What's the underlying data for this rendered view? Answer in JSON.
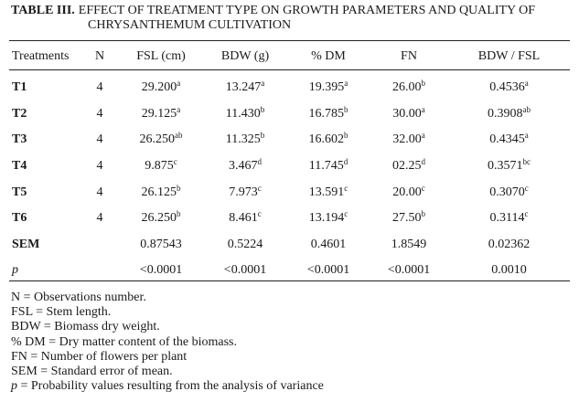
{
  "caption": {
    "label": "TABLE III.",
    "title_line1": "EFFECT OF TREATMENT TYPE ON GROWTH PARAMETERS AND QUALITY OF",
    "title_line2": "CHRYSANTHEMUM CULTIVATION"
  },
  "headers": [
    "Treatments",
    "N",
    "FSL (cm)",
    "BDW (g)",
    "% DM",
    "FN",
    "BDW / FSL"
  ],
  "rows": [
    {
      "label": "T1",
      "n": "4",
      "fsl": "29.200",
      "fsl_sup": "a",
      "bdw": "13.247",
      "bdw_sup": "a",
      "dm": "19.395",
      "dm_sup": "a",
      "fn": "26.00",
      "fn_sup": "b",
      "ratio": "0.4536",
      "ratio_sup": "a"
    },
    {
      "label": "T2",
      "n": "4",
      "fsl": "29.125",
      "fsl_sup": "a",
      "bdw": "11.430",
      "bdw_sup": "b",
      "dm": "16.785",
      "dm_sup": "b",
      "fn": "30.00",
      "fn_sup": "a",
      "ratio": "0.3908",
      "ratio_sup": "ab"
    },
    {
      "label": "T3",
      "n": "4",
      "fsl": "26.250",
      "fsl_sup": "ab",
      "bdw": "11.325",
      "bdw_sup": "b",
      "dm": "16.602",
      "dm_sup": "b",
      "fn": "32.00",
      "fn_sup": "a",
      "ratio": "0.4345",
      "ratio_sup": "a"
    },
    {
      "label": "T4",
      "n": "4",
      "fsl": "9.875",
      "fsl_sup": "c",
      "bdw": "3.467",
      "bdw_sup": "d",
      "dm": "11.745",
      "dm_sup": "d",
      "fn": "02.25",
      "fn_sup": "d",
      "ratio": "0.3571",
      "ratio_sup": "bc"
    },
    {
      "label": "T5",
      "n": "4",
      "fsl": "26.125",
      "fsl_sup": "b",
      "bdw": "7.973",
      "bdw_sup": "c",
      "dm": "13.591",
      "dm_sup": "c",
      "fn": "20.00",
      "fn_sup": "c",
      "ratio": "0.3070",
      "ratio_sup": "c"
    },
    {
      "label": "T6",
      "n": "4",
      "fsl": "26.250",
      "fsl_sup": "b",
      "bdw": "8.461",
      "bdw_sup": "c",
      "dm": "13.194",
      "dm_sup": "c",
      "fn": "27.50",
      "fn_sup": "b",
      "ratio": "0.3114",
      "ratio_sup": "c"
    }
  ],
  "sem": {
    "label": "SEM",
    "fsl": "0.87543",
    "bdw": "0.5224",
    "dm": "0.4601",
    "fn": "1.8549",
    "ratio": "0.02362"
  },
  "p": {
    "label": "p",
    "fsl": "<0.0001",
    "bdw": "<0.0001",
    "dm": "<0.0001",
    "fn": "<0.0001",
    "ratio": "0.0010"
  },
  "notes": [
    "N = Observations number.",
    "FSL = Stem length.",
    "BDW = Biomass dry weight.",
    "% DM = Dry matter content of the biomass.",
    "FN = Number of flowers per plant",
    "SEM = Standard error of mean."
  ],
  "note_p": {
    "symbol": "p",
    "text": " = Probability values resulting from the analysis of variance"
  }
}
